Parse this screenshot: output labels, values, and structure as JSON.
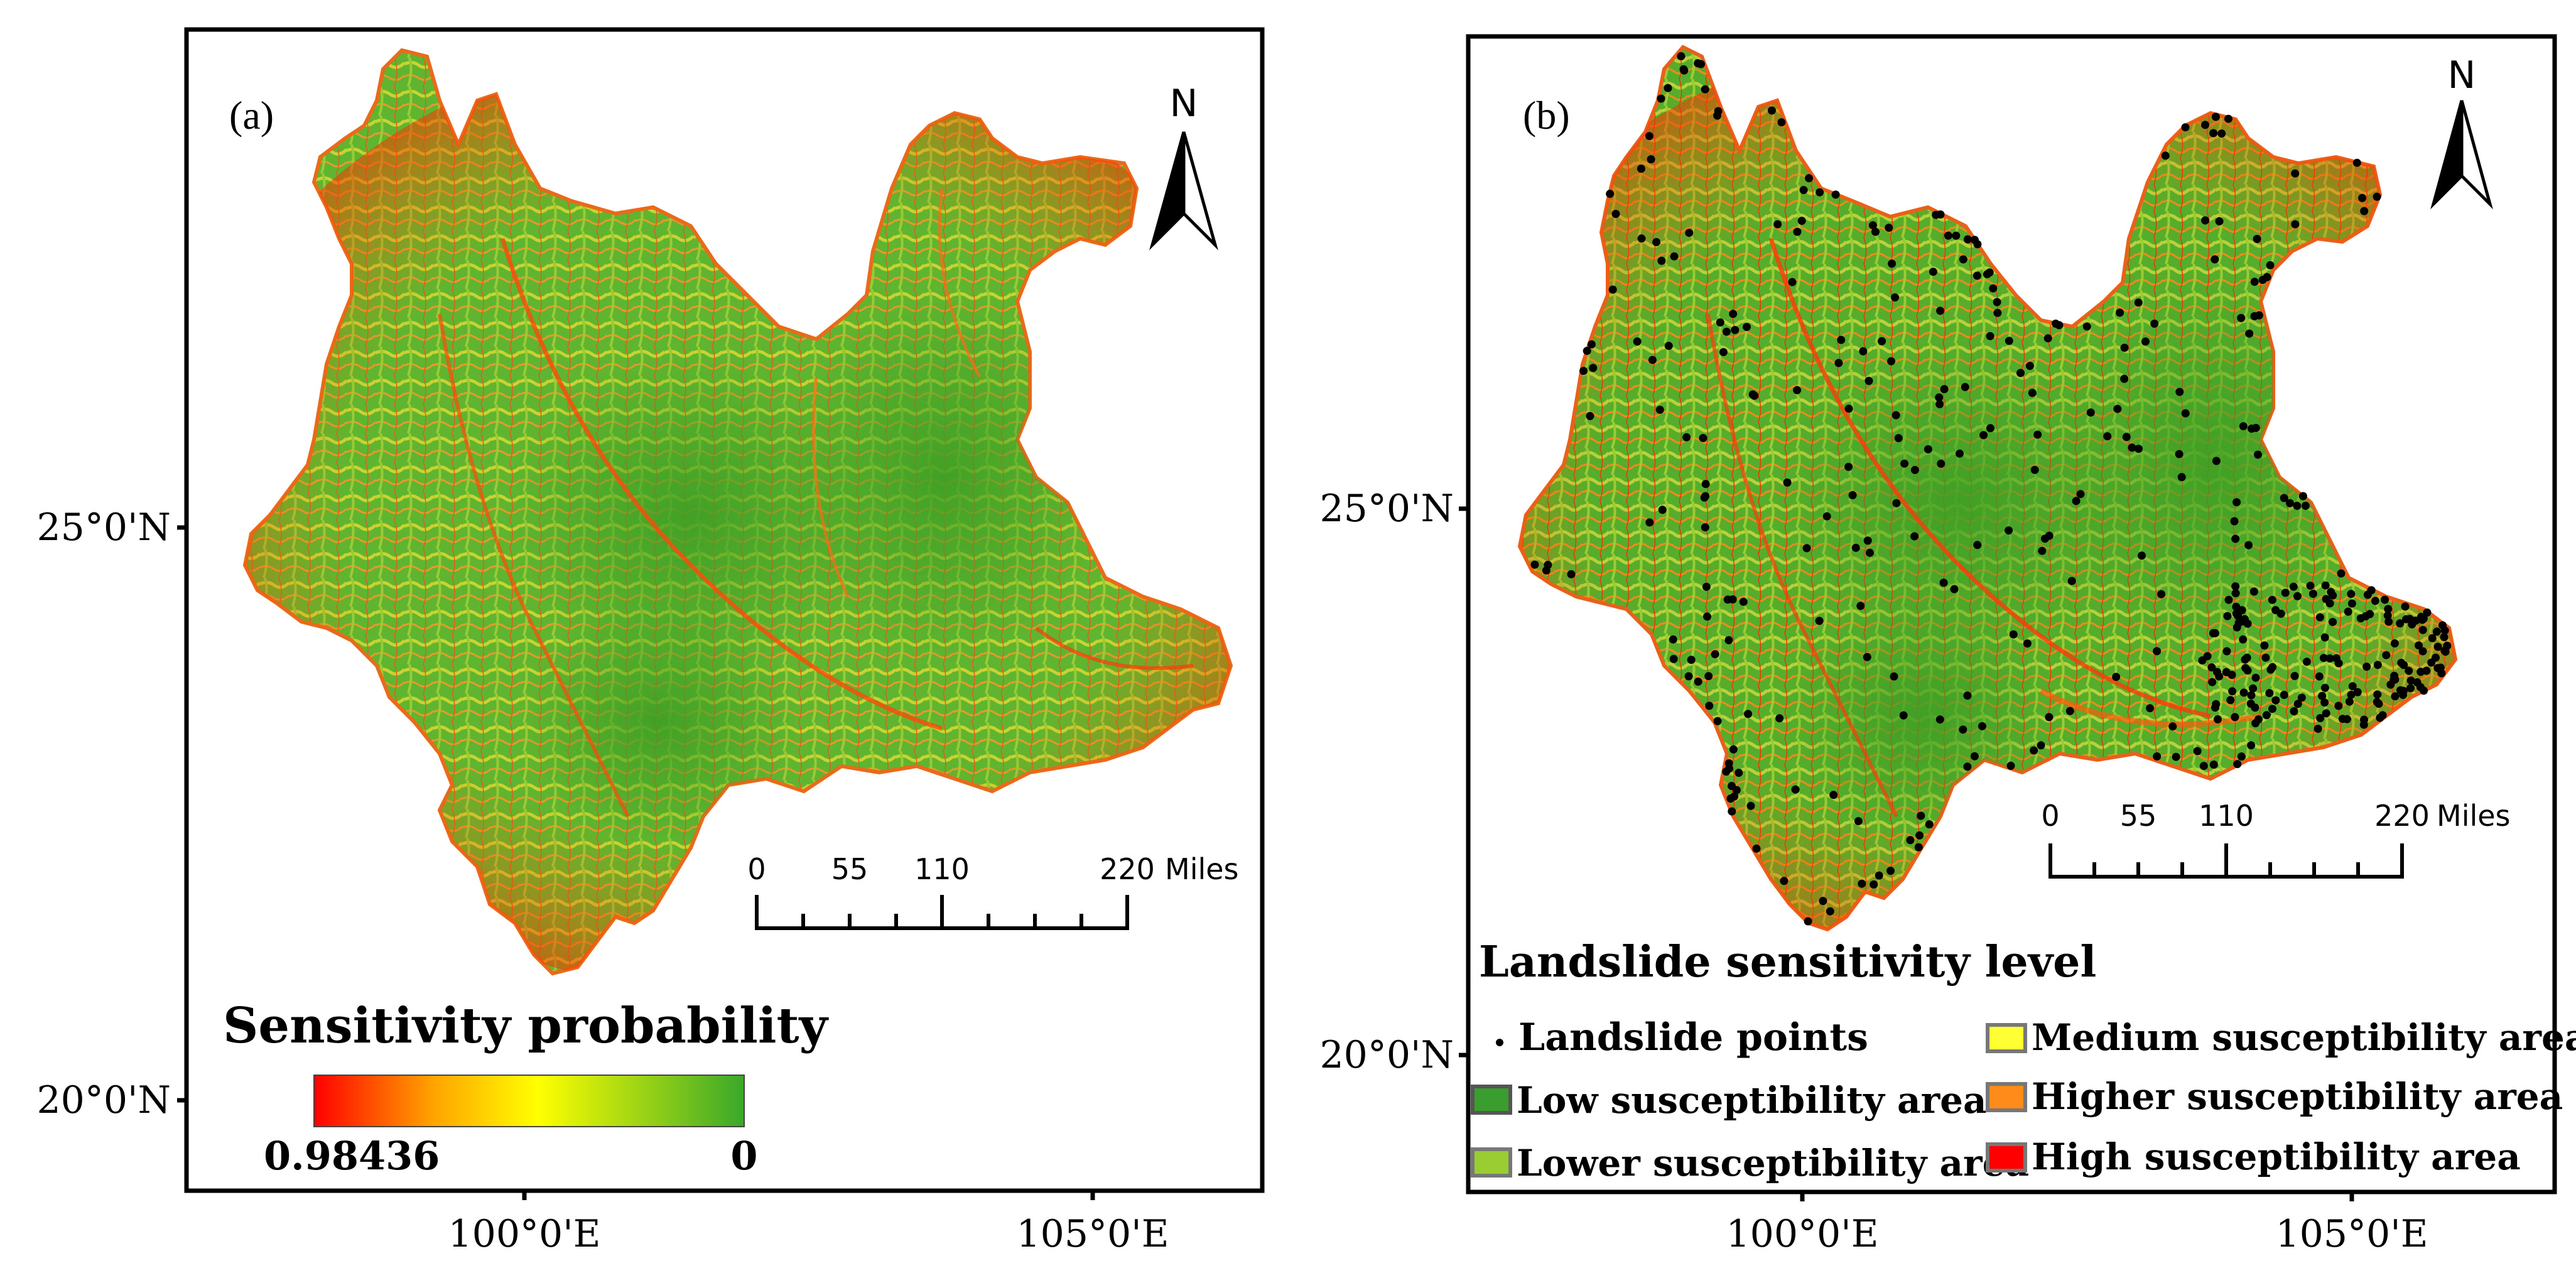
{
  "panel_a": {
    "label": "(a)",
    "north": "N",
    "lat_labels": [
      "25°0'N",
      "20°0'N"
    ],
    "lon_labels": [
      "100°0'E",
      "105°0'E"
    ],
    "scale_ticks": [
      "0",
      "55",
      "110",
      "220"
    ],
    "scale_unit": "Miles",
    "legend_title": "Sensitivity probability",
    "legend_max": "0.98436",
    "legend_min": "0",
    "colors": {
      "high": "#ff0000",
      "mid_orange": "#ffa500",
      "mid_yellow": "#ffff00",
      "low": "#3aa82a"
    }
  },
  "panel_b": {
    "label": "(b)",
    "north": "N",
    "lat_labels": [
      "25°0'N",
      "20°0'N"
    ],
    "lon_labels": [
      "100°0'E",
      "105°0'E"
    ],
    "scale_ticks": [
      "0",
      "55",
      "110",
      "220"
    ],
    "scale_unit": "Miles",
    "legend_title": "Landslide sensitivity level",
    "legend_items": [
      {
        "label": "Landslide points",
        "color": "#000000"
      },
      {
        "label": "Low susceptibility area",
        "color": "#3a9e2e"
      },
      {
        "label": "Lower susceptibility area",
        "color": "#9acd32"
      },
      {
        "label": "Medium susceptibility area",
        "color": "#ffff33"
      },
      {
        "label": "Higher susceptibility area",
        "color": "#ff8c1a"
      },
      {
        "label": "High susceptibility area",
        "color": "#ff0000"
      }
    ]
  }
}
